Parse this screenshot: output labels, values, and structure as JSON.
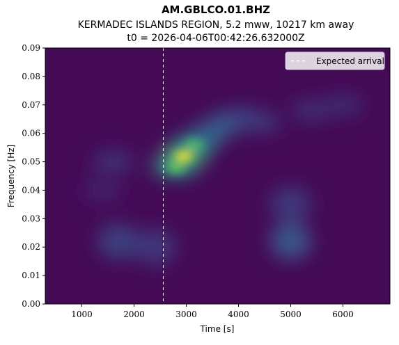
{
  "chart_data": {
    "type": "heatmap",
    "title": "AM.GBLCO.01.BHZ",
    "subtitle_line1": "KERMADEC ISLANDS REGION, 5.2 mww, 10217 km away",
    "subtitle_line2": "t0 = 2026-04-06T00:42:26.632000Z",
    "xlabel": "Time [s]",
    "ylabel": "Frequency [Hz]",
    "xlim": [
      300,
      6900
    ],
    "ylim": [
      0.0,
      0.09
    ],
    "x_ticks": [
      1000,
      2000,
      3000,
      4000,
      5000,
      6000
    ],
    "y_ticks": [
      0.0,
      0.01,
      0.02,
      0.03,
      0.04,
      0.05,
      0.06,
      0.07,
      0.08,
      0.09
    ],
    "x_tick_labels": [
      "1000",
      "2000",
      "3000",
      "4000",
      "5000",
      "6000"
    ],
    "y_tick_labels": [
      "0.00",
      "0.01",
      "0.02",
      "0.03",
      "0.04",
      "0.05",
      "0.06",
      "0.07",
      "0.08",
      "0.09"
    ],
    "colormap": "viridis",
    "expected_arrival_time": 2560,
    "legend": {
      "label": "Expected arrival",
      "placement": "top-right"
    },
    "energy_features": [
      {
        "time": 2950,
        "freq": 0.052,
        "intensity": 1.0
      },
      {
        "time": 2800,
        "freq": 0.048,
        "intensity": 0.75
      },
      {
        "time": 3150,
        "freq": 0.056,
        "intensity": 0.7
      },
      {
        "time": 3450,
        "freq": 0.06,
        "intensity": 0.45
      },
      {
        "time": 3800,
        "freq": 0.064,
        "intensity": 0.4
      },
      {
        "time": 4100,
        "freq": 0.065,
        "intensity": 0.35
      },
      {
        "time": 4400,
        "freq": 0.064,
        "intensity": 0.25
      },
      {
        "time": 5000,
        "freq": 0.022,
        "intensity": 0.4
      },
      {
        "time": 5000,
        "freq": 0.035,
        "intensity": 0.25
      },
      {
        "time": 1700,
        "freq": 0.022,
        "intensity": 0.28
      },
      {
        "time": 2400,
        "freq": 0.02,
        "intensity": 0.25
      },
      {
        "time": 1600,
        "freq": 0.05,
        "intensity": 0.22
      },
      {
        "time": 1400,
        "freq": 0.04,
        "intensity": 0.15
      },
      {
        "time": 5400,
        "freq": 0.068,
        "intensity": 0.2
      },
      {
        "time": 6000,
        "freq": 0.07,
        "intensity": 0.18
      }
    ]
  }
}
